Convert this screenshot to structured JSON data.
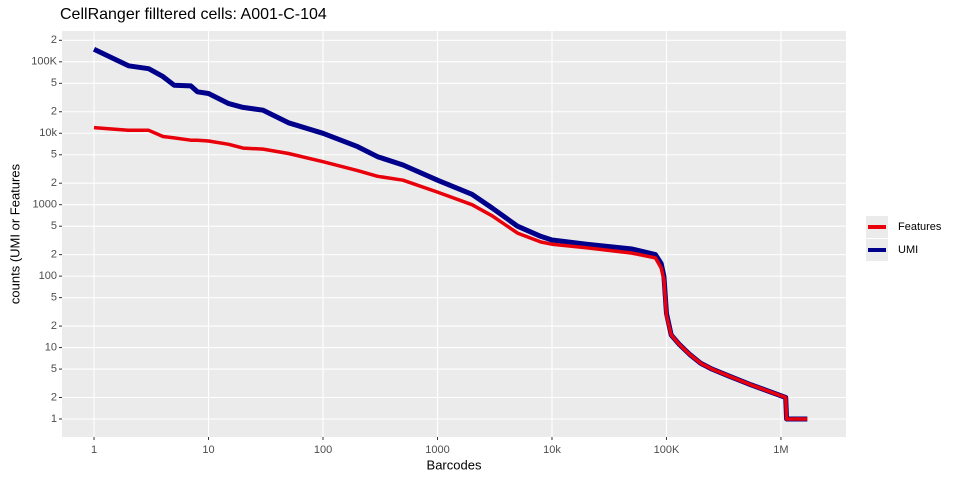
{
  "chart_data": {
    "type": "line",
    "title": "CellRanger filltered cells: A001-C-104",
    "x_label": "Barcodes",
    "y_label": "counts (UMI or Features",
    "x_log": true,
    "y_log": true,
    "grid": true,
    "legend": "right",
    "x": [
      1,
      2,
      3,
      4,
      5,
      7,
      8,
      10,
      15,
      20,
      30,
      50,
      100,
      200,
      300,
      500,
      1000,
      2000,
      3000,
      5000,
      8000,
      10000,
      20000,
      50000,
      80000,
      90000,
      95000,
      100000,
      110000,
      130000,
      160000,
      200000,
      250000,
      350000,
      550000,
      1100000,
      1120000,
      1700000
    ],
    "series": [
      {
        "name": "Features",
        "color": "#e8000b",
        "values": [
          12000,
          11000,
          11000,
          9000,
          8600,
          8000,
          8000,
          7800,
          7000,
          6200,
          6000,
          5200,
          4000,
          3000,
          2500,
          2200,
          1500,
          1000,
          700,
          400,
          300,
          280,
          250,
          210,
          180,
          130,
          90,
          28,
          15,
          11,
          8,
          6,
          5,
          4,
          3,
          2,
          1,
          1
        ]
      },
      {
        "name": "UMI",
        "color": "#00008b",
        "values": [
          150000,
          88000,
          80000,
          62000,
          47000,
          46000,
          38000,
          36000,
          26000,
          23000,
          21000,
          14000,
          10000,
          6500,
          4700,
          3600,
          2200,
          1400,
          900,
          500,
          360,
          320,
          280,
          240,
          200,
          150,
          100,
          30,
          15,
          11,
          8,
          6,
          5,
          4,
          3,
          2,
          1,
          1
        ]
      }
    ],
    "xlim": [
      0.525,
      3700000
    ],
    "xticks": [
      1,
      10,
      100,
      1000,
      {
        "value": 10000,
        "label": "10k"
      },
      {
        "value": 100000,
        "label": "100K"
      },
      {
        "value": 1000000,
        "label": "1M"
      }
    ],
    "ylim": [
      0.56,
      270000
    ],
    "yticks": [
      1,
      2,
      5,
      10,
      {
        "value": 20,
        "label": "2"
      },
      {
        "value": 50,
        "label": "5"
      },
      100,
      {
        "value": 200,
        "label": "2"
      },
      {
        "value": 500,
        "label": "5"
      },
      1000,
      {
        "value": 2000,
        "label": "2"
      },
      {
        "value": 5000,
        "label": "5"
      },
      {
        "value": 10000,
        "label": "10k"
      },
      {
        "value": 20000,
        "label": "2"
      },
      {
        "value": 50000,
        "label": "5"
      },
      {
        "value": 100000,
        "label": "100K"
      },
      {
        "value": 200000,
        "label": "2"
      }
    ]
  }
}
